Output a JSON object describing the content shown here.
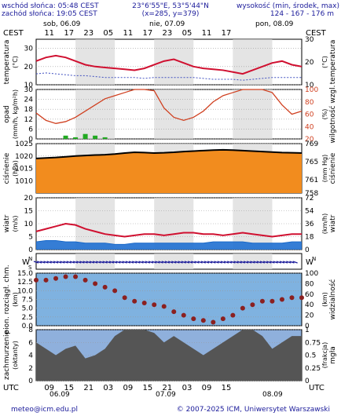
{
  "header": {
    "sunrise": "wschód słońca: 05:48 CEST",
    "sunset": "zachód słońca: 19:05 CEST",
    "coords": "23°6'55\"E, 53°5'44\"N",
    "grid": "(x=285, y=379)",
    "elev_label": "wysokość (min, środek, max)",
    "elev_values": "124 - 167 - 176 m"
  },
  "top_axis": {
    "tz_left": "CEST",
    "tz_right": "CEST",
    "days": [
      "sob, 06.09",
      "nie, 07.09",
      "pon, 08.09"
    ],
    "hours": [
      "11",
      "17",
      "23",
      "05",
      "11",
      "17",
      "23",
      "05",
      "11",
      "17"
    ]
  },
  "bottom_axis": {
    "tz_left": "UTC",
    "tz_right": "UTC",
    "hours": [
      "09",
      "15",
      "21",
      "03",
      "09",
      "15",
      "21",
      "03",
      "09",
      "15"
    ],
    "dates": [
      "06.09",
      "07.09",
      "08.09"
    ]
  },
  "footer": {
    "email": "meteo@icm.edu.pl",
    "copyright": "© 2007-2025 ICM, Uniwersytet Warszawski"
  },
  "chart_data": [
    {
      "type": "line",
      "ylabel_left": "temperatura",
      "unit_left": "(°C)",
      "ylabel_right": "temperatura",
      "unit_right": "(°C)",
      "ylim": [
        10,
        35
      ],
      "yticks": [
        10,
        20,
        30
      ],
      "x": [
        0,
        3,
        6,
        9,
        12,
        15,
        18,
        21,
        24,
        27,
        30,
        33,
        36,
        39,
        42,
        45,
        48,
        51,
        54,
        57,
        60,
        63,
        66,
        69,
        72,
        75,
        78,
        81
      ],
      "series": [
        {
          "values": [
            23,
            25,
            26,
            25,
            23,
            21,
            20,
            19.5,
            19,
            18.5,
            18,
            19,
            21,
            23,
            24,
            22,
            20,
            19,
            18.5,
            18,
            17,
            16,
            18,
            20,
            22,
            23,
            21,
            20
          ]
        },
        {
          "values": [
            16,
            16.5,
            16,
            15.5,
            15,
            15,
            14.5,
            14,
            14,
            14,
            14,
            13.5,
            14,
            14,
            14,
            14,
            14,
            13.5,
            13,
            13,
            13,
            12.5,
            13,
            13.5,
            14,
            14,
            14,
            14
          ]
        }
      ]
    },
    {
      "type": "bar",
      "ylabel_left": "opad",
      "unit_left": "(mm/h, kg/m²h)",
      "ylabel_right": "wilgotność wzgl.",
      "unit_right": "(%)",
      "ylim": [
        0,
        30
      ],
      "yticks": [
        0,
        6,
        12,
        18,
        24,
        30
      ],
      "yticks_right": [
        20,
        40,
        60,
        80,
        100
      ],
      "x": [
        0,
        3,
        6,
        9,
        12,
        15,
        18,
        21,
        24,
        27,
        30,
        33,
        36,
        39,
        42,
        45,
        48,
        51,
        54,
        57,
        60,
        63,
        66,
        69,
        72,
        75,
        78,
        81
      ],
      "series": [
        {
          "values": [
            62,
            50,
            45,
            48,
            55,
            65,
            75,
            85,
            90,
            95,
            100,
            100,
            98,
            70,
            55,
            50,
            55,
            65,
            80,
            90,
            95,
            100,
            100,
            100,
            95,
            75,
            60,
            65
          ]
        },
        {
          "values": [
            0,
            0,
            0,
            2,
            1,
            3,
            2,
            1,
            0,
            0,
            0,
            0,
            0,
            0,
            0,
            0,
            0,
            0,
            0,
            0,
            0,
            0,
            0,
            0,
            0,
            0,
            0,
            0
          ]
        }
      ]
    },
    {
      "type": "area",
      "ylabel_left": "ciśnienie",
      "unit_left": "(hPa)",
      "ylabel_right": "ciśnienie",
      "unit_right": "(mm Hg)",
      "ylim": [
        1005,
        1025
      ],
      "yticks": [
        1010,
        1015,
        1020,
        1025
      ],
      "yticks_right": [
        758,
        761,
        765,
        769
      ],
      "x": [
        0,
        3,
        6,
        9,
        12,
        15,
        18,
        21,
        24,
        27,
        30,
        33,
        36,
        39,
        42,
        45,
        48,
        51,
        54,
        57,
        60,
        63,
        66,
        69,
        72,
        75,
        78,
        81
      ],
      "series": [
        {
          "values": [
            1019,
            1019.2,
            1019.4,
            1019.7,
            1020,
            1020.2,
            1020.4,
            1020.5,
            1020.8,
            1021.2,
            1021.5,
            1021.4,
            1021.2,
            1021.3,
            1021.5,
            1021.8,
            1022,
            1022.2,
            1022.4,
            1022.5,
            1022.4,
            1022.2,
            1022,
            1021.8,
            1021.6,
            1021.4,
            1021.3,
            1021.2
          ]
        }
      ]
    },
    {
      "type": "line",
      "ylabel_left": "wiatr",
      "unit_left": "(m/s)",
      "ylabel_right": "wiatr",
      "unit_right": "(km/h)",
      "ylim": [
        0,
        20
      ],
      "yticks": [
        0,
        5,
        10,
        15,
        20
      ],
      "yticks_right": [
        0,
        18,
        36,
        54,
        72
      ],
      "x": [
        0,
        3,
        6,
        9,
        12,
        15,
        18,
        21,
        24,
        27,
        30,
        33,
        36,
        39,
        42,
        45,
        48,
        51,
        54,
        57,
        60,
        63,
        66,
        69,
        72,
        75,
        78,
        81
      ],
      "series": [
        {
          "values": [
            7,
            8,
            9,
            10,
            9.5,
            8,
            7,
            6,
            5.5,
            5,
            5.5,
            6,
            6,
            5.5,
            6,
            6.5,
            6.5,
            6,
            6,
            5.5,
            6,
            6.5,
            6,
            5.5,
            5,
            5.5,
            6,
            6
          ]
        },
        {
          "values": [
            3,
            3.5,
            3.5,
            3,
            3,
            2.5,
            2.5,
            2.5,
            2,
            2,
            2.5,
            2.5,
            2.5,
            2.5,
            2.5,
            2.5,
            2.5,
            2.5,
            3,
            3,
            3,
            3,
            2.5,
            2.5,
            2.5,
            2.5,
            3,
            3
          ]
        }
      ]
    },
    {
      "type": "scatter",
      "ylabel_left": "pion. rozciągł. chm.",
      "unit_left": "(km)",
      "ylabel_right": "widzialność",
      "unit_right": "(km)",
      "ylim": [
        0,
        15
      ],
      "yticks": [
        0,
        2.5,
        5,
        7.5,
        10,
        12.5,
        15
      ],
      "yticks_labels": [
        "0.0",
        "2.5",
        "5.0",
        "7.5",
        "10.0",
        "12.5",
        "15.0"
      ],
      "yticks_right": [
        0,
        20,
        40,
        60,
        80,
        100
      ],
      "x": [
        0,
        3,
        6,
        9,
        12,
        15,
        18,
        21,
        24,
        27,
        30,
        33,
        36,
        39,
        42,
        45,
        48,
        51,
        54,
        57,
        60,
        63,
        66,
        69,
        72,
        75,
        78,
        81
      ],
      "series": [
        {
          "values": [
            13,
            13,
            13.5,
            14,
            14,
            13,
            12,
            11,
            10,
            8,
            7,
            6.5,
            6,
            5.5,
            4,
            3,
            2,
            1.5,
            1,
            2,
            3,
            5,
            6,
            7,
            7,
            7.5,
            8,
            8
          ]
        }
      ]
    },
    {
      "type": "area",
      "ylabel_left": "zachmurzenie",
      "unit_left": "(oktanty)",
      "ylabel_right": "mgła",
      "unit_right": "(frakcja)",
      "ylim": [
        0,
        8
      ],
      "yticks": [
        0,
        2,
        4,
        6,
        8
      ],
      "yticks_right": [
        0,
        0.25,
        0.5,
        0.75,
        1
      ],
      "x": [
        0,
        3,
        6,
        9,
        12,
        15,
        18,
        21,
        24,
        27,
        30,
        33,
        36,
        39,
        42,
        45,
        48,
        51,
        54,
        57,
        60,
        63,
        66,
        69,
        72,
        75,
        78,
        81
      ],
      "series": [
        {
          "values": [
            6,
            5,
            4,
            5,
            5.5,
            3.5,
            4,
            5,
            7,
            8,
            8,
            8,
            7.5,
            6,
            7,
            6,
            5,
            4,
            5,
            6,
            7,
            8,
            8,
            7,
            5,
            6,
            7,
            7
          ]
        },
        {
          "values": [
            0,
            0,
            0,
            0,
            0,
            0,
            0,
            0,
            0,
            0,
            0,
            0,
            0,
            0,
            0,
            0,
            0,
            0,
            0,
            0,
            0,
            0,
            0,
            0,
            0,
            0,
            0,
            0
          ]
        }
      ]
    }
  ]
}
